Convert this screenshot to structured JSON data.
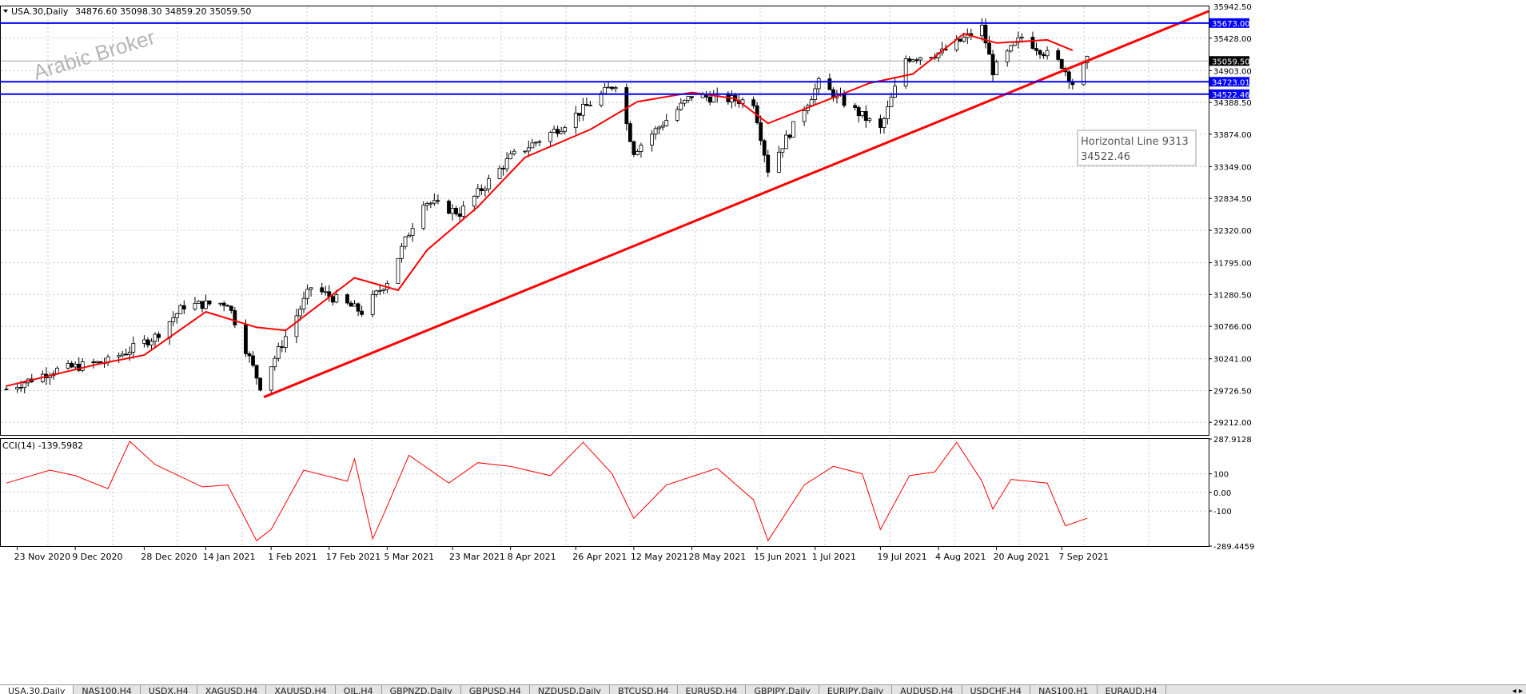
{
  "header": {
    "collapse_icon": "triangle-down-icon",
    "symbol": "USA.30,Daily",
    "ohlc": "34876.60 35098.30 34859.20 35059.50"
  },
  "watermark": "Arabic Broker",
  "price_axis": {
    "top_label": "35942.50",
    "labels": [
      "35428.00",
      "34903.00",
      "34388.50",
      "33874.00",
      "33349.00",
      "32834.50",
      "32320.00",
      "31795.00",
      "31280.50",
      "30766.00",
      "30241.00",
      "29726.50",
      "29212.00"
    ],
    "current_price": "35059.50"
  },
  "levels": [
    {
      "name": "resistance-line",
      "price": 35673.0,
      "label": "35673.00",
      "color": "#0000ff"
    },
    {
      "name": "mid-line",
      "price": 34723.01,
      "label": "34723.01",
      "color": "#0000ff"
    },
    {
      "name": "support-line",
      "price": 34522.46,
      "label": "34522.46",
      "color": "#0000ff"
    }
  ],
  "tooltip": {
    "title": "Horizontal Line 9313",
    "value": "34522.46"
  },
  "indicator": {
    "title": "CCI(14) -139.5982",
    "axis_labels": [
      "287.9128",
      "100",
      "0.00",
      "-100",
      "-289.4459"
    ]
  },
  "time_axis": [
    "23 Nov 2020",
    "9 Dec 2020",
    "28 Dec 2020",
    "14 Jan 2021",
    "1 Feb 2021",
    "17 Feb 2021",
    "5 Mar 2021",
    "23 Mar 2021",
    "8 Apr 2021",
    "26 Apr 2021",
    "12 May 2021",
    "28 May 2021",
    "15 Jun 2021",
    "1 Jul 2021",
    "19 Jul 2021",
    "4 Aug 2021",
    "20 Aug 2021",
    "7 Sep 2021"
  ],
  "tabs": [
    "USA.30,Daily",
    "NAS100,H4",
    "USDX,H4",
    "XAGUSD,H4",
    "XAUUSD,H4",
    "OIL,H4",
    "GBPNZD,Daily",
    "GBPUSD,H4",
    "NZDUSD,Daily",
    "BTCUSD,H4",
    "EURUSD,H4",
    "GBPJPY,Daily",
    "EURJPY,Daily",
    "AUDUSD,H4",
    "USDCHF,H4",
    "NAS100,H1",
    "EURAUD,H4"
  ],
  "colors": {
    "bull": "#ffffff",
    "bear": "#000000",
    "ma": "#ff0000",
    "trendline": "#ff0000",
    "cci": "#ff0000",
    "levels": "#0000ff",
    "grid": "#c0c0c0"
  },
  "chart_data": {
    "type": "candlestick",
    "y_range": [
      29008,
      35942.5
    ],
    "cci_range": [
      -289.4459,
      287.9128
    ],
    "trendline": {
      "from": {
        "date": "30 Jan 2021",
        "price": 29620
      },
      "to": {
        "date": "beyond 15 Sep 2021",
        "price": 35800
      }
    },
    "price_anchors": [
      [
        "20 Nov 2020",
        29750
      ],
      [
        "3 Dec 2020",
        30050
      ],
      [
        "18 Dec 2020",
        30200
      ],
      [
        "31 Dec 2020",
        30600
      ],
      [
        "8 Jan 2021",
        31100
      ],
      [
        "20 Jan 2021",
        31150
      ],
      [
        "29 Jan 2021",
        29800
      ],
      [
        "12 Feb 2021",
        31400
      ],
      [
        "26 Feb 2021",
        31000
      ],
      [
        "5 Mar 2021",
        31500
      ],
      [
        "15 Mar 2021",
        32800
      ],
      [
        "25 Mar 2021",
        32600
      ],
      [
        "8 Apr 2021",
        33500
      ],
      [
        "22 Apr 2021",
        34000
      ],
      [
        "7 May 2021",
        34700
      ],
      [
        "12 May 2021",
        33600
      ],
      [
        "28 May 2021",
        34500
      ],
      [
        "14 Jun 2021",
        34400
      ],
      [
        "18 Jun 2021",
        33300
      ],
      [
        "2 Jul 2021",
        34700
      ],
      [
        "19 Jul 2021",
        33950
      ],
      [
        "26 Jul 2021",
        35100
      ],
      [
        "5 Aug 2021",
        35200
      ],
      [
        "16 Aug 2021",
        35600
      ],
      [
        "19 Aug 2021",
        34900
      ],
      [
        "27 Aug 2021",
        35450
      ],
      [
        "7 Sep 2021",
        35000
      ],
      [
        "10 Sep 2021",
        34700
      ],
      [
        "14 Sep 2021",
        35059.5
      ]
    ],
    "ma_anchors": [
      [
        "20 Nov 2020",
        29800
      ],
      [
        "15 Dec 2020",
        30150
      ],
      [
        "28 Dec 2020",
        30300
      ],
      [
        "14 Jan 2021",
        31000
      ],
      [
        "28 Jan 2021",
        30750
      ],
      [
        "5 Feb 2021",
        30700
      ],
      [
        "24 Feb 2021",
        31550
      ],
      [
        "8 Mar 2021",
        31350
      ],
      [
        "16 Mar 2021",
        32000
      ],
      [
        "30 Mar 2021",
        32700
      ],
      [
        "12 Apr 2021",
        33500
      ],
      [
        "30 Apr 2021",
        33950
      ],
      [
        "13 May 2021",
        34400
      ],
      [
        "28 May 2021",
        34550
      ],
      [
        "9 Jun 2021",
        34450
      ],
      [
        "18 Jun 2021",
        34050
      ],
      [
        "1 Jul 2021",
        34350
      ],
      [
        "16 Jul 2021",
        34700
      ],
      [
        "28 Jul 2021",
        34850
      ],
      [
        "11 Aug 2021",
        35500
      ],
      [
        "20 Aug 2021",
        35350
      ],
      [
        "3 Sep 2021",
        35400
      ],
      [
        "10 Sep 2021",
        35230
      ]
    ],
    "cci_anchors": [
      [
        "20 Nov 2020",
        50
      ],
      [
        "2 Dec 2020",
        120
      ],
      [
        "9 Dec 2020",
        90
      ],
      [
        "18 Dec 2020",
        20
      ],
      [
        "24 Dec 2020",
        275
      ],
      [
        "31 Dec 2020",
        150
      ],
      [
        "13 Jan 2021",
        30
      ],
      [
        "20 Jan 2021",
        40
      ],
      [
        "28 Jan 2021",
        -260
      ],
      [
        "1 Feb 2021",
        -200
      ],
      [
        "10 Feb 2021",
        120
      ],
      [
        "22 Feb 2021",
        60
      ],
      [
        "24 Feb 2021",
        180
      ],
      [
        "1 Mar 2021",
        -250
      ],
      [
        "4 Mar 2021",
        -120
      ],
      [
        "11 Mar 2021",
        200
      ],
      [
        "22 Mar 2021",
        50
      ],
      [
        "30 Mar 2021",
        160
      ],
      [
        "8 Apr 2021",
        140
      ],
      [
        "19 Apr 2021",
        90
      ],
      [
        "28 Apr 2021",
        270
      ],
      [
        "6 May 2021",
        100
      ],
      [
        "12 May 2021",
        -140
      ],
      [
        "21 May 2021",
        40
      ],
      [
        "4 Jun 2021",
        130
      ],
      [
        "14 Jun 2021",
        -40
      ],
      [
        "18 Jun 2021",
        -260
      ],
      [
        "28 Jun 2021",
        40
      ],
      [
        "6 Jul 2021",
        140
      ],
      [
        "14 Jul 2021",
        100
      ],
      [
        "19 Jul 2021",
        -200
      ],
      [
        "27 Jul 2021",
        90
      ],
      [
        "3 Aug 2021",
        110
      ],
      [
        "9 Aug 2021",
        270
      ],
      [
        "16 Aug 2021",
        60
      ],
      [
        "19 Aug 2021",
        -90
      ],
      [
        "24 Aug 2021",
        70
      ],
      [
        "3 Sep 2021",
        50
      ],
      [
        "8 Sep 2021",
        -180
      ],
      [
        "14 Sep 2021",
        -139.5982
      ]
    ],
    "anchor_date_grid": {
      "first": "20 Nov 2020",
      "last": "14 Sep 2021"
    }
  }
}
